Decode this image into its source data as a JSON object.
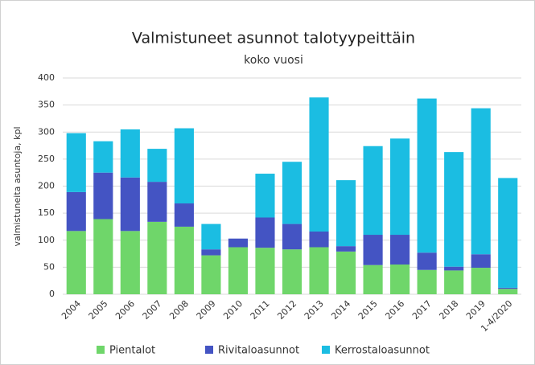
{
  "chart_data": {
    "type": "stacked_bar",
    "title": "Valmistuneet asunnot talotyypeittäin",
    "subtitle": "koko vuosi",
    "y_label": "valmistuneita asuntoja, kpl",
    "categories": [
      "2004",
      "2005",
      "2006",
      "2007",
      "2008",
      "2009",
      "2010",
      "2011",
      "2012",
      "2013",
      "2014",
      "2015",
      "2016",
      "2017",
      "2018",
      "2019",
      "1-4/2020"
    ],
    "series": [
      {
        "name": "Pientalot",
        "color": "#6fd66a",
        "values": [
          117,
          139,
          117,
          134,
          125,
          72,
          87,
          86,
          83,
          87,
          79,
          54,
          55,
          45,
          44,
          49,
          10
        ]
      },
      {
        "name": "Rivitaloasunnot",
        "color": "#4454c3",
        "values": [
          72,
          86,
          99,
          74,
          43,
          11,
          16,
          56,
          47,
          29,
          10,
          56,
          55,
          32,
          7,
          25,
          2
        ]
      },
      {
        "name": "Kerrostaloasunnot",
        "color": "#1bbde2",
        "values": [
          109,
          58,
          89,
          61,
          139,
          47,
          0,
          81,
          115,
          248,
          122,
          164,
          178,
          285,
          212,
          270,
          203
        ]
      }
    ],
    "ylim": [
      0,
      400
    ],
    "yticks": [
      0,
      50,
      100,
      150,
      200,
      250,
      300,
      350,
      400
    ],
    "grid": true,
    "legend": "bottom"
  }
}
